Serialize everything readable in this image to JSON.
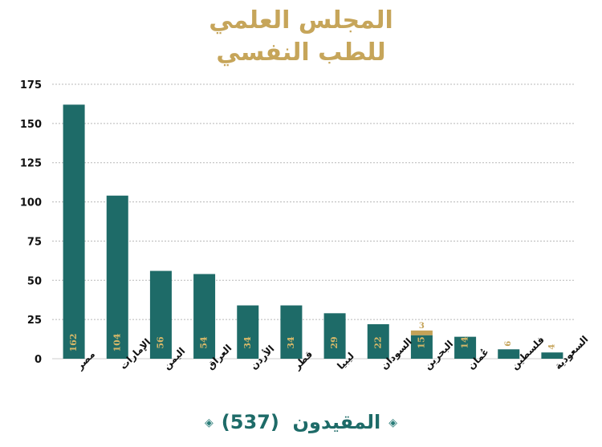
{
  "title_lines": [
    "المجلس العلمي",
    "للطب النفسي"
  ],
  "footer": {
    "label": "المقيدون",
    "total": "(537)",
    "left_ornament": "◈",
    "right_ornament": "◈"
  },
  "colors": {
    "bar": "#1e6b68",
    "bar_top": "#c4a257",
    "value_label": "#d7b868",
    "grid": "#b8b8b8",
    "title": "#c6a55a"
  },
  "chart_data": {
    "type": "bar",
    "categories": [
      "مصر",
      "الإمارات",
      "اليمن",
      "العراق",
      "الأردن",
      "قطر",
      "ليبيا",
      "السودان",
      "البحرين",
      "عُمان",
      "فلسطين",
      "السعودية"
    ],
    "series": [
      {
        "values": [
          162,
          104,
          56,
          54,
          34,
          34,
          29,
          22,
          15,
          14,
          6,
          4
        ]
      },
      {
        "values": [
          0,
          0,
          0,
          0,
          0,
          0,
          0,
          0,
          3,
          0,
          0,
          0
        ]
      }
    ],
    "stacked": true,
    "ylim": [
      0,
      175
    ],
    "yticks": [
      0,
      25,
      50,
      75,
      100,
      125,
      150,
      175
    ],
    "grid": true,
    "legend": "none"
  }
}
